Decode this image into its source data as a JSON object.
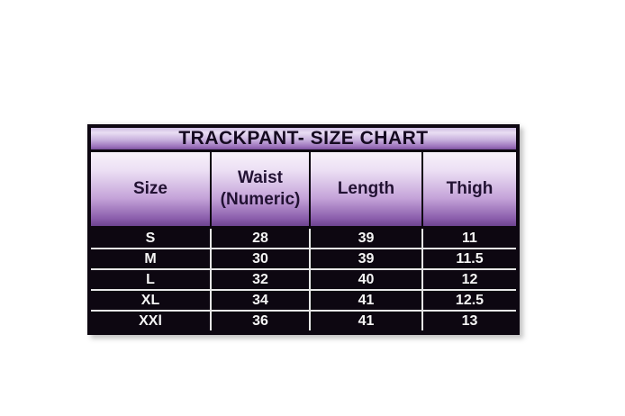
{
  "page": {
    "background": "#ffffff"
  },
  "chart_data": {
    "type": "table",
    "title": "TRACKPANT- SIZE CHART",
    "columns": [
      "Size",
      "Waist (Numeric)",
      "Length",
      "Thigh"
    ],
    "waist_header_lines": [
      "Waist",
      "(Numeric)"
    ],
    "rows": [
      [
        "S",
        "28",
        "39",
        "11"
      ],
      [
        "M",
        "30",
        "39",
        "11.5"
      ],
      [
        "L",
        "32",
        "40",
        "12"
      ],
      [
        "XL",
        "34",
        "41",
        "12.5"
      ],
      [
        "XXl",
        "36",
        "41",
        "13"
      ]
    ],
    "layout": {
      "header_style": "purple-gradient",
      "body_style": "black-with-white-gridlines",
      "legend": false
    }
  },
  "colors": {
    "table_border": "#0d0711",
    "header_gradient_top": "#f7f2fa",
    "header_gradient_bottom": "#6d4390",
    "header_text": "#221233",
    "data_background": "#0d0711",
    "data_text": "#f5f5f5",
    "grid_line": "#e6e6e6"
  }
}
